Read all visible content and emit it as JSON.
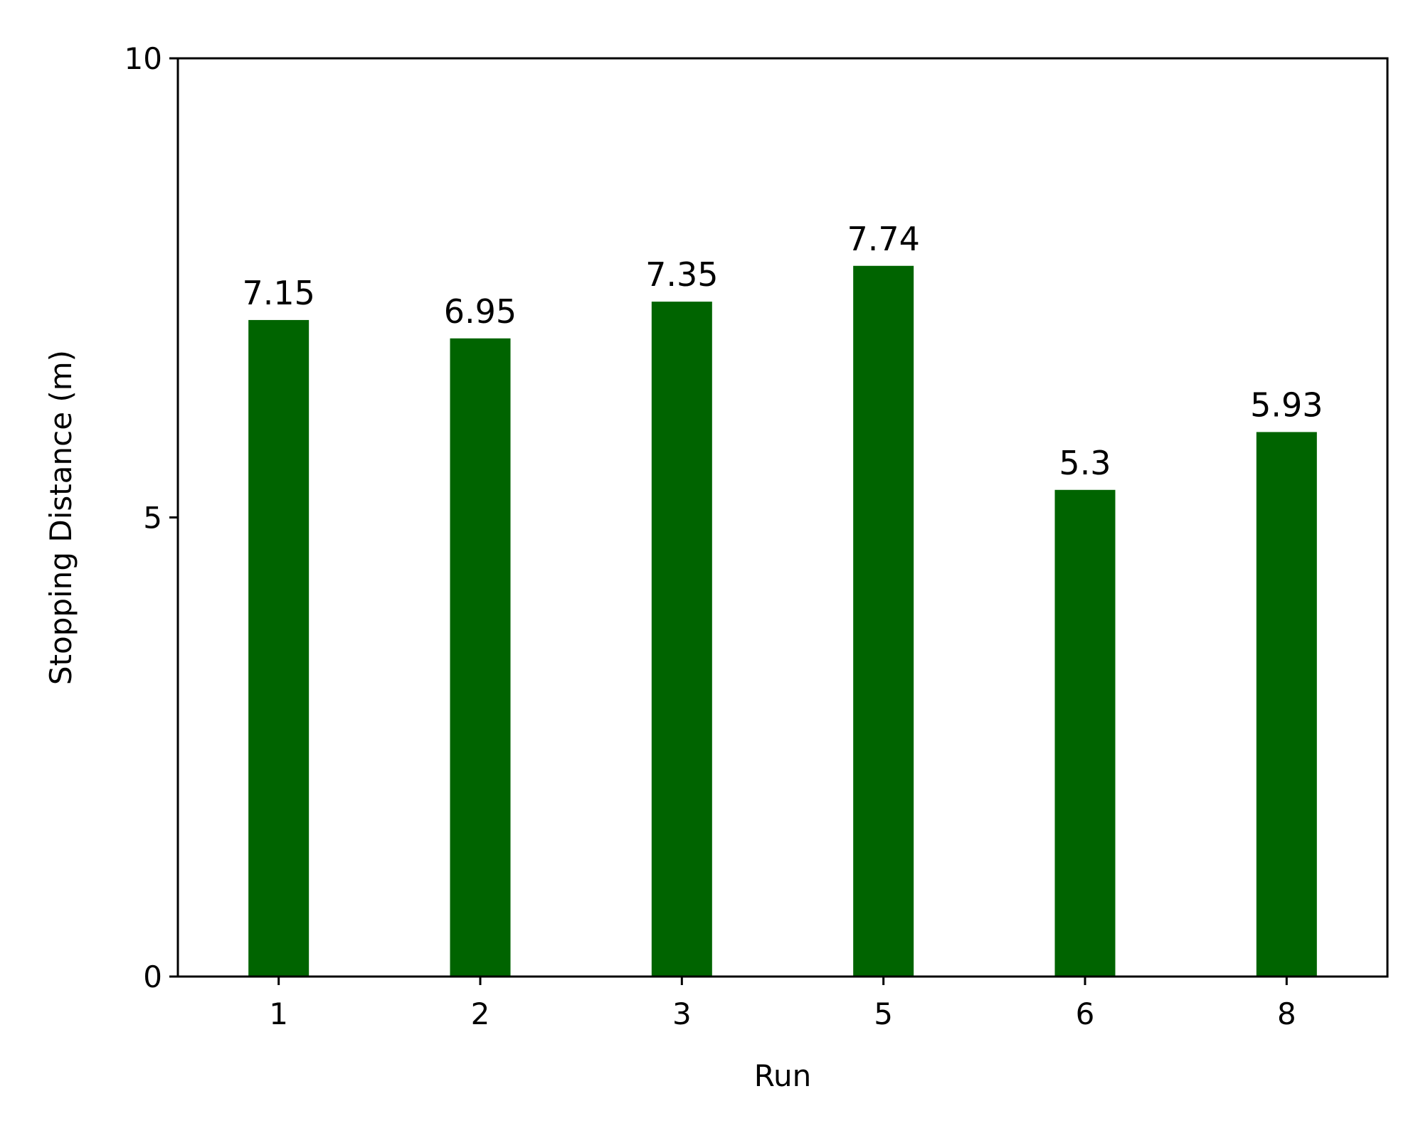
{
  "chart_data": {
    "type": "bar",
    "title": "",
    "xlabel": "Run",
    "ylabel": "Stopping Distance (m)",
    "categories": [
      "1",
      "2",
      "3",
      "5",
      "6",
      "8"
    ],
    "values": [
      7.15,
      6.95,
      7.35,
      7.74,
      5.3,
      5.93
    ],
    "data_labels": [
      "7.15",
      "6.95",
      "7.35",
      "7.74",
      "5.3",
      "5.93"
    ],
    "ylim": [
      0,
      10
    ],
    "yticks": [
      0,
      5,
      10
    ],
    "ytick_labels": [
      "0",
      "5",
      "10"
    ],
    "grid": false,
    "legend": "none",
    "bar_color": "#006400"
  }
}
